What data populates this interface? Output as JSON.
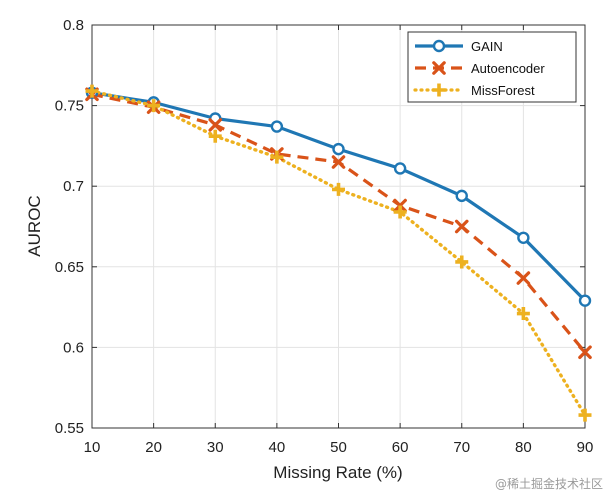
{
  "chart_data": {
    "type": "line",
    "title": "",
    "xlabel": "Missing Rate (%)",
    "ylabel": "AUROC",
    "x": [
      10,
      20,
      30,
      40,
      50,
      60,
      70,
      80,
      90
    ],
    "xlim": [
      10,
      90
    ],
    "ylim": [
      0.55,
      0.8
    ],
    "xticks": [
      10,
      20,
      30,
      40,
      50,
      60,
      70,
      80,
      90
    ],
    "yticks": [
      0.55,
      0.6,
      0.65,
      0.7,
      0.75,
      0.8
    ],
    "ytick_labels": [
      "0.55",
      "0.6",
      "0.65",
      "0.7",
      "0.75",
      "0.8"
    ],
    "grid": true,
    "legend_position": "top-right",
    "series": [
      {
        "name": "GAIN",
        "color": "#1f77b4",
        "marker": "circle",
        "line": "solid",
        "values": [
          0.758,
          0.752,
          0.742,
          0.737,
          0.723,
          0.711,
          0.694,
          0.668,
          0.629
        ]
      },
      {
        "name": "Autoencoder",
        "color": "#d95319",
        "marker": "x",
        "line": "dashed",
        "values": [
          0.757,
          0.749,
          0.738,
          0.72,
          0.715,
          0.688,
          0.675,
          0.643,
          0.597
        ]
      },
      {
        "name": "MissForest",
        "color": "#edb120",
        "marker": "plus",
        "line": "dotted",
        "values": [
          0.759,
          0.75,
          0.731,
          0.718,
          0.698,
          0.684,
          0.653,
          0.621,
          0.558
        ]
      }
    ]
  },
  "watermark": "@稀土掘金技术社区"
}
